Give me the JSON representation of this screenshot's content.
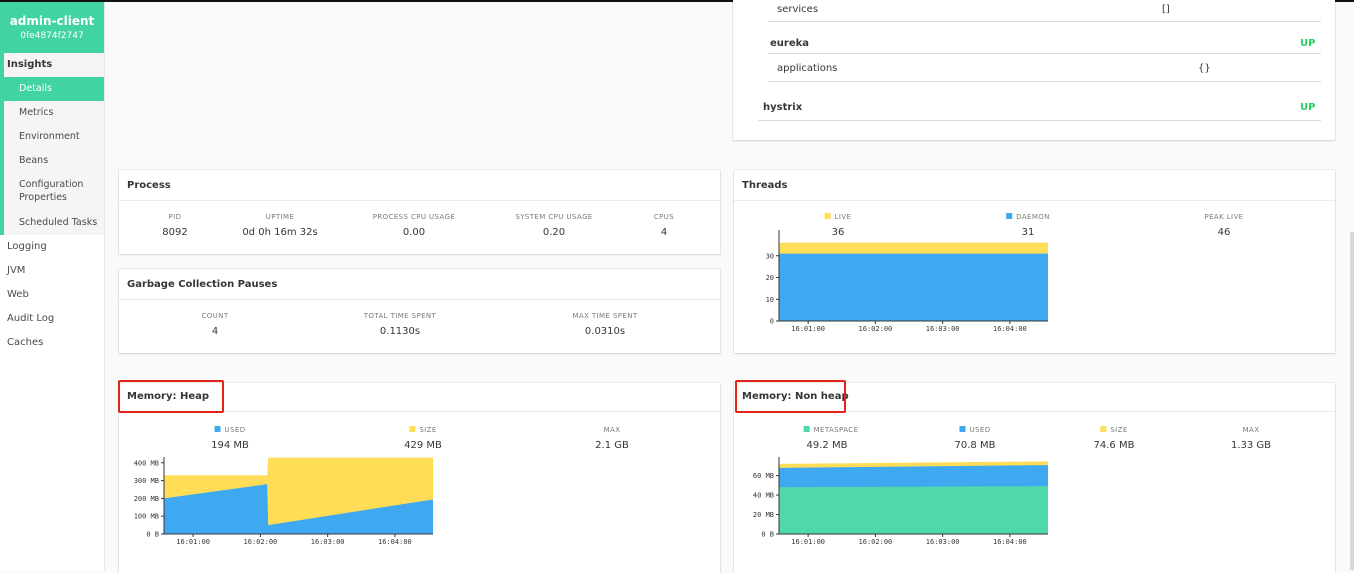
{
  "app": {
    "name": "admin-client",
    "instance_id": "0fe4874f2747"
  },
  "sidebar": {
    "insights": "Insights",
    "sub_items": [
      {
        "label": "Details",
        "active": true
      },
      {
        "label": "Metrics"
      },
      {
        "label": "Environment"
      },
      {
        "label": "Beans"
      },
      {
        "label": "Configuration Properties"
      },
      {
        "label": "Scheduled Tasks"
      }
    ],
    "top_items": [
      "Logging",
      "JVM",
      "Web",
      "Audit Log",
      "Caches"
    ]
  },
  "health": {
    "services_label": "services",
    "services_value": "[]",
    "eureka_label": "eureka",
    "eureka_status": "UP",
    "applications_label": "applications",
    "applications_value": "{}",
    "hystrix_label": "hystrix",
    "hystrix_status": "UP"
  },
  "process": {
    "title": "Process",
    "fields": [
      {
        "label": "PID",
        "value": "8092"
      },
      {
        "label": "UPTIME",
        "value": "0d 0h 16m 32s"
      },
      {
        "label": "PROCESS CPU USAGE",
        "value": "0.00"
      },
      {
        "label": "SYSTEM CPU USAGE",
        "value": "0.20"
      },
      {
        "label": "CPUS",
        "value": "4"
      }
    ]
  },
  "gc": {
    "title": "Garbage Collection Pauses",
    "fields": [
      {
        "label": "COUNT",
        "value": "4"
      },
      {
        "label": "TOTAL TIME SPENT",
        "value": "0.1130s"
      },
      {
        "label": "MAX TIME SPENT",
        "value": "0.0310s"
      }
    ]
  },
  "threads": {
    "title": "Threads",
    "fields": [
      {
        "label": "LIVE",
        "value": "36",
        "color": "#ffdd57"
      },
      {
        "label": "DAEMON",
        "value": "31",
        "color": "#3ea8f0"
      },
      {
        "label": "PEAK LIVE",
        "value": "46"
      }
    ]
  },
  "heap": {
    "title": "Memory: Heap",
    "fields": [
      {
        "label": "USED",
        "value": "194 MB",
        "color": "#3ea8f0"
      },
      {
        "label": "SIZE",
        "value": "429 MB",
        "color": "#ffdd57"
      },
      {
        "label": "MAX",
        "value": "2.1 GB"
      }
    ]
  },
  "nonheap": {
    "title": "Memory: Non heap",
    "fields": [
      {
        "label": "METASPACE",
        "value": "49.2 MB",
        "color": "#4fd9a9"
      },
      {
        "label": "USED",
        "value": "70.8 MB",
        "color": "#3ea8f0"
      },
      {
        "label": "SIZE",
        "value": "74.6 MB",
        "color": "#ffdd57"
      },
      {
        "label": "MAX",
        "value": "1.33 GB"
      }
    ]
  },
  "chart_data": [
    {
      "id": "threads",
      "type": "area",
      "x": [
        "16:00:34",
        "16:04:34"
      ],
      "x_ticks": [
        "16:01:00",
        "16:02:00",
        "16:03:00",
        "16:04:00"
      ],
      "y_ticks": [
        "0",
        "10",
        "20",
        "30"
      ],
      "ylim": [
        0,
        40
      ],
      "series": [
        {
          "name": "LIVE",
          "values": [
            36,
            36
          ],
          "color": "#ffdd57"
        },
        {
          "name": "DAEMON",
          "values": [
            31,
            31
          ],
          "color": "#3ea8f0"
        }
      ]
    },
    {
      "id": "heap",
      "type": "area",
      "x": [
        "16:00:34",
        "16:02:06",
        "16:02:07",
        "16:04:34"
      ],
      "x_ticks": [
        "16:01:00",
        "16:02:00",
        "16:03:00",
        "16:04:00"
      ],
      "y_ticks": [
        "0 B",
        "100 MB",
        "200 MB",
        "300 MB",
        "400 MB"
      ],
      "ylim": [
        0,
        410
      ],
      "series": [
        {
          "name": "SIZE",
          "values": [
            330,
            330,
            429,
            429
          ],
          "color": "#ffdd57"
        },
        {
          "name": "USED",
          "values": [
            200,
            280,
            50,
            194
          ],
          "color": "#3ea8f0"
        }
      ]
    },
    {
      "id": "nonheap",
      "type": "area",
      "x": [
        "16:00:34",
        "16:04:34"
      ],
      "x_ticks": [
        "16:01:00",
        "16:02:00",
        "16:03:00",
        "16:04:00"
      ],
      "y_ticks": [
        "0 B",
        "20 MB",
        "40 MB",
        "60 MB"
      ],
      "ylim": [
        0,
        75
      ],
      "series": [
        {
          "name": "SIZE",
          "values": [
            72,
            74.6
          ],
          "color": "#ffdd57"
        },
        {
          "name": "USED",
          "values": [
            68,
            70.8
          ],
          "color": "#3ea8f0"
        },
        {
          "name": "METASPACE",
          "values": [
            48,
            49.2
          ],
          "color": "#4fd9a9"
        }
      ]
    }
  ]
}
